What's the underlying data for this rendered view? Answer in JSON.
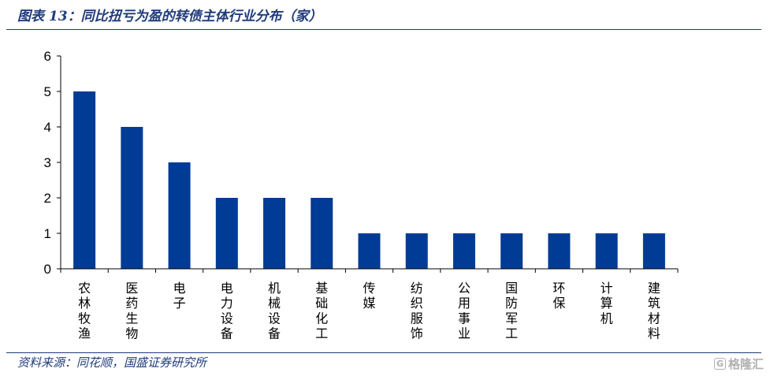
{
  "header": {
    "title": "图表 13：同比扭亏为盈的转债主体行业分布（家）"
  },
  "footer": {
    "source": "资料来源：同花顺，国盛证券研究所",
    "watermark": "格隆汇",
    "watermark_icon": "g-logo-icon"
  },
  "colors": {
    "bar": "#003B95",
    "text": "#1f3b7a",
    "axis": "#000000"
  },
  "chart_data": {
    "type": "bar",
    "categories": [
      "农林牧渔",
      "医药生物",
      "电子",
      "电力设备",
      "机械设备",
      "基础化工",
      "传媒",
      "纺织服饰",
      "公用事业",
      "国防军工",
      "环保",
      "计算机",
      "建筑材料"
    ],
    "values": [
      5,
      4,
      3,
      2,
      2,
      2,
      1,
      1,
      1,
      1,
      1,
      1,
      1
    ],
    "title": "",
    "xlabel": "",
    "ylabel": "",
    "ylim": [
      0,
      6
    ],
    "yticks": [
      "0",
      "1",
      "2",
      "3",
      "4",
      "5",
      "6"
    ],
    "grid": false,
    "legend": "none"
  }
}
